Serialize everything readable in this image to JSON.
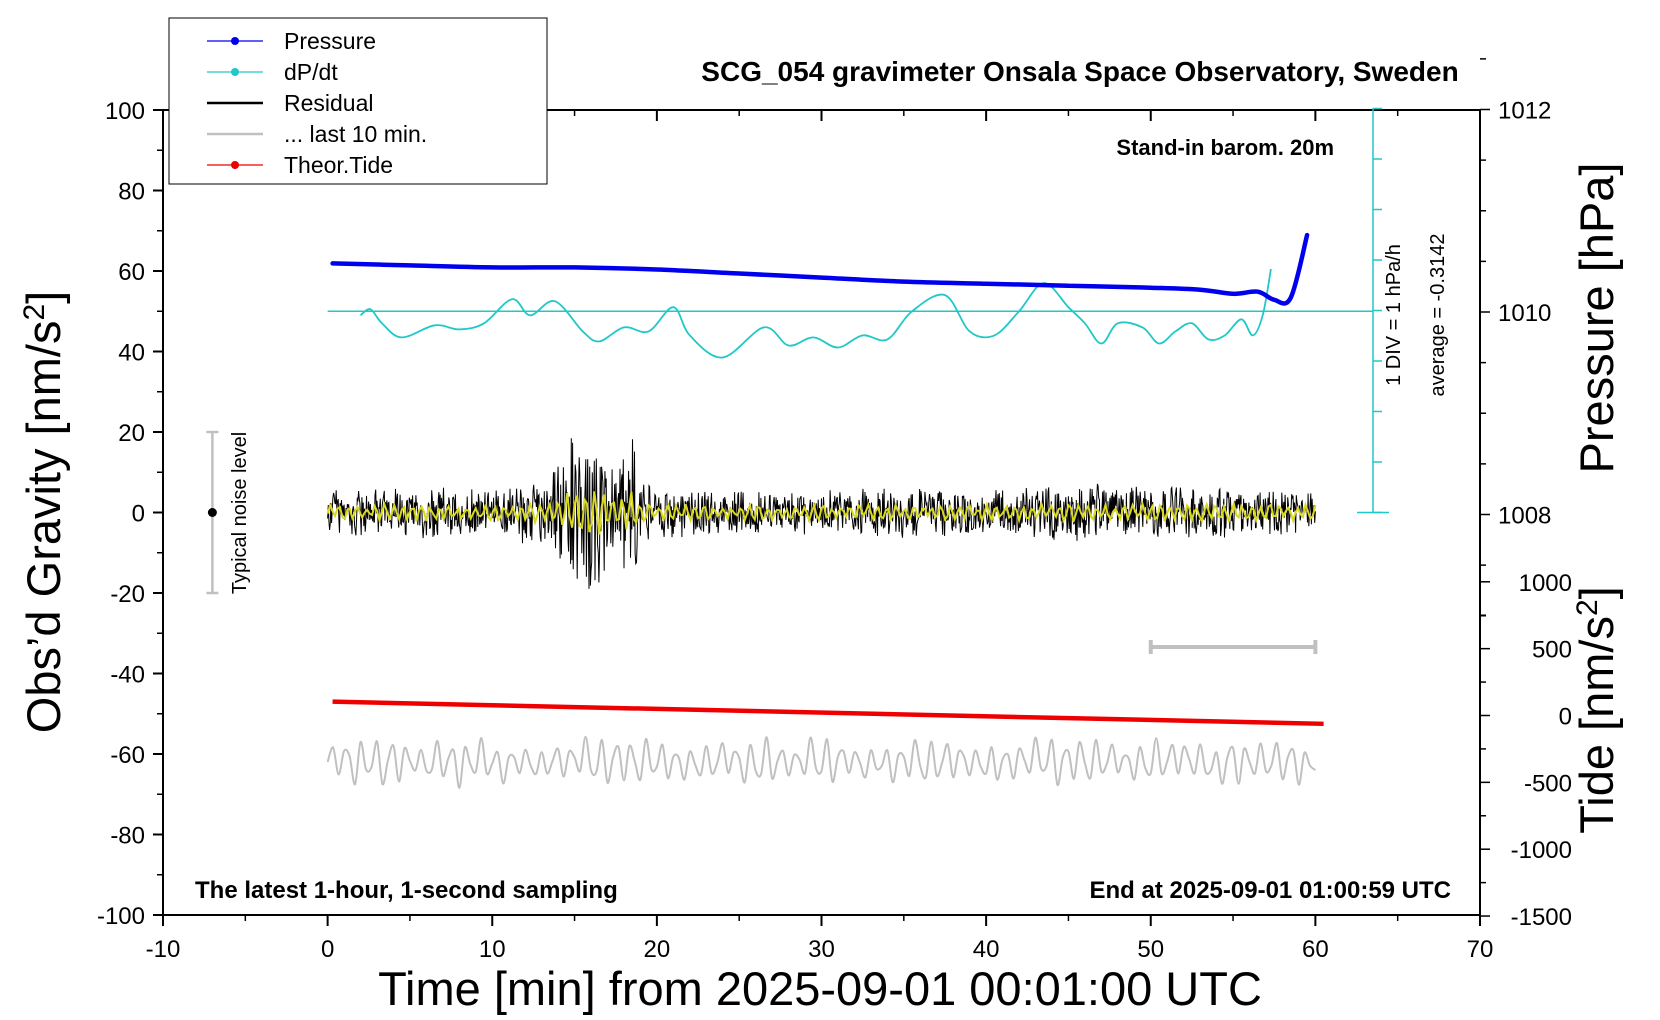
{
  "chart_data": {
    "type": "line",
    "title": "SCG_054 gravimeter Onsala Space Observatory, Sweden",
    "xlabel": "Time [min] from 2025-09-01 00:01:00 UTC",
    "ylabel": "Obs’d Gravity [nm/s",
    "ylabel_sup": "2",
    "ylabel_end": "]",
    "y2label": "Pressure [hPa]",
    "y3label": "Tide [nm/s",
    "y3label_sup": "2",
    "y3label_end": "]",
    "xlim": [
      -10,
      70
    ],
    "ylim": [
      -100,
      100
    ],
    "x_ticks": [
      "-10",
      "0",
      "10",
      "20",
      "30",
      "40",
      "50",
      "60",
      "70"
    ],
    "y_ticks": [
      "100",
      "80",
      "60",
      "40",
      "20",
      "0",
      "-20",
      "-40",
      "-60",
      "-80",
      "-100"
    ],
    "pressure_ticks": [
      "1012",
      "1010",
      "1008"
    ],
    "tide_ticks": [
      "1000",
      "500",
      "0",
      "-500",
      "-1000",
      "-1500"
    ],
    "grid": false,
    "legend_position": "top-left",
    "legend": [
      {
        "label": "Pressure",
        "color": "#0000ee",
        "style": "line-dot"
      },
      {
        "label": "dP/dt",
        "color": "#20c8c8",
        "style": "line-dot"
      },
      {
        "label": "Residual",
        "color": "#000000",
        "style": "line"
      },
      {
        "label": "... last 10 min.",
        "color": "#c0c0c0",
        "style": "line"
      },
      {
        "label": "Theor.Tide",
        "color": "#ee0000",
        "style": "line-dot"
      }
    ],
    "annotations": {
      "stand_in": "Stand-in barom. 20m",
      "div": "1 DIV = 1 hPa/h",
      "average": "average = -0.3142",
      "noise": "Typical noise level",
      "latest": "The latest 1-hour, 1-second sampling",
      "end_at": "End at 2025-09-01 01:00:59 UTC"
    },
    "series": [
      {
        "name": "Pressure",
        "color": "#0000ee",
        "axis": "hPa",
        "x": [
          0.3,
          5,
          10,
          15,
          20,
          25,
          30,
          35,
          40,
          45,
          50,
          53,
          55,
          56.5,
          57.5,
          58.5,
          59.5
        ],
        "y": [
          1010.48,
          1010.46,
          1010.44,
          1010.44,
          1010.42,
          1010.38,
          1010.34,
          1010.3,
          1010.28,
          1010.26,
          1010.24,
          1010.22,
          1010.18,
          1010.2,
          1010.12,
          1010.14,
          1010.76
        ]
      },
      {
        "name": "dP/dt",
        "color": "#20c8c8",
        "axis": "gravity-equivalent",
        "x": [
          2,
          2.6,
          3.3,
          4.5,
          6.5,
          8,
          9.5,
          11.2,
          12.3,
          13.8,
          15.5,
          16.5,
          18,
          19.5,
          21,
          22,
          24,
          26.5,
          28,
          29.5,
          31,
          32.5,
          34,
          35.5,
          37.5,
          39,
          40.5,
          42,
          43.5,
          45,
          46,
          47,
          48,
          49.5,
          50.5,
          51.5,
          52.5,
          53.5,
          54.5,
          55.5,
          56.2,
          56.8,
          57.3
        ],
        "y": [
          49,
          50.5,
          47,
          43.5,
          46.5,
          45.5,
          47,
          53,
          49,
          52.5,
          45,
          42.5,
          46,
          45,
          51,
          44,
          38.5,
          46,
          41.5,
          43.5,
          41,
          44,
          43,
          50,
          54,
          45,
          44,
          50,
          57,
          51,
          47,
          42,
          47,
          46,
          42,
          45,
          47,
          43,
          44,
          48,
          44,
          49,
          60.5
        ]
      },
      {
        "name": "Residual",
        "color": "#000000",
        "axis": "nm/s2",
        "x_start": 0,
        "x_end": 60,
        "envelope_x": [
          0,
          10,
          12,
          13.5,
          14.5,
          15.5,
          16,
          16.5,
          17,
          17.5,
          18,
          18.5,
          19,
          20,
          25,
          30,
          35,
          40,
          45,
          50,
          55,
          60
        ],
        "envelope_amp": [
          7,
          7,
          8,
          10,
          20,
          22,
          26,
          25,
          14,
          12,
          15,
          22,
          10,
          7,
          6,
          6,
          7,
          6,
          8,
          7,
          7,
          7
        ]
      },
      {
        "name": "... last 10 min.",
        "color": "#c0c0c0",
        "axis": "nm/s2",
        "x_start": 0,
        "x_end": 60,
        "center": -62,
        "amp": 6
      },
      {
        "name": "Theor.Tide",
        "color": "#ee0000",
        "axis": "nm/s2",
        "x": [
          0.3,
          60.5
        ],
        "y": [
          -47,
          -52.5
        ]
      }
    ],
    "scale_bar_x": [
      50,
      60
    ]
  }
}
